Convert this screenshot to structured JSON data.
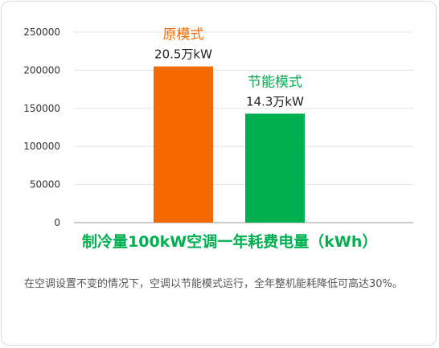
{
  "chart_data": {
    "type": "bar",
    "categories": [
      "原模式",
      "节能模式"
    ],
    "values": [
      205000,
      143000
    ],
    "value_labels": [
      "20.5万kW",
      "14.3万kW"
    ],
    "colors": [
      "#f56a00",
      "#00b050"
    ],
    "y_ticks": [
      "250000",
      "200000",
      "150000",
      "100000",
      "50000",
      "0"
    ],
    "ylim": [
      0,
      250000
    ],
    "xlabel": "制冷量100kW空调一年耗费电量（kWh）",
    "xlabel_color": "#00b050",
    "grid": true
  },
  "footnote": "在空调设置不变的情况下，空调以节能模式运行，全年整机能耗降低可高达30%。"
}
